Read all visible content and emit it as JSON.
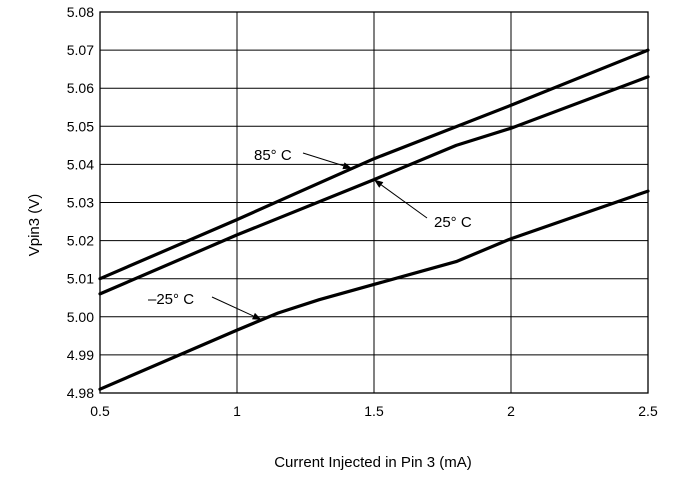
{
  "chart_data": {
    "type": "line",
    "xlabel": "Current Injected in Pin 3 (mA)",
    "ylabel": "Vpin3 (V)",
    "xlim": [
      0.5,
      2.5
    ],
    "ylim": [
      4.98,
      5.08
    ],
    "grid": true,
    "x_ticks": [
      "0.5",
      "1",
      "1.5",
      "2",
      "2.5"
    ],
    "y_ticks": [
      "4.98",
      "4.99",
      "5.00",
      "5.01",
      "5.02",
      "5.03",
      "5.04",
      "5.05",
      "5.06",
      "5.07",
      "5.08"
    ],
    "series": [
      {
        "name": "85° C",
        "x": [
          0.5,
          1.0,
          1.5,
          2.0,
          2.5
        ],
        "y": [
          5.01,
          5.0255,
          5.0415,
          5.0555,
          5.07
        ]
      },
      {
        "name": "25° C",
        "x": [
          0.5,
          1.0,
          1.5,
          1.8,
          2.0,
          2.5
        ],
        "y": [
          5.006,
          5.0215,
          5.036,
          5.045,
          5.0495,
          5.063
        ]
      },
      {
        "name": "–25° C",
        "x": [
          0.5,
          1.0,
          1.15,
          1.3,
          1.6,
          1.8,
          2.0,
          2.5
        ],
        "y": [
          4.981,
          4.9965,
          5.001,
          5.0045,
          5.0105,
          5.0145,
          5.0205,
          5.033
        ]
      }
    ],
    "annotations": [
      {
        "text": "85° C",
        "series": 0,
        "point_x": 1.42
      },
      {
        "text": "25° C",
        "series": 1,
        "point_x": 1.5
      },
      {
        "text": "–25° C",
        "series": 2,
        "point_x": 1.09
      }
    ]
  }
}
